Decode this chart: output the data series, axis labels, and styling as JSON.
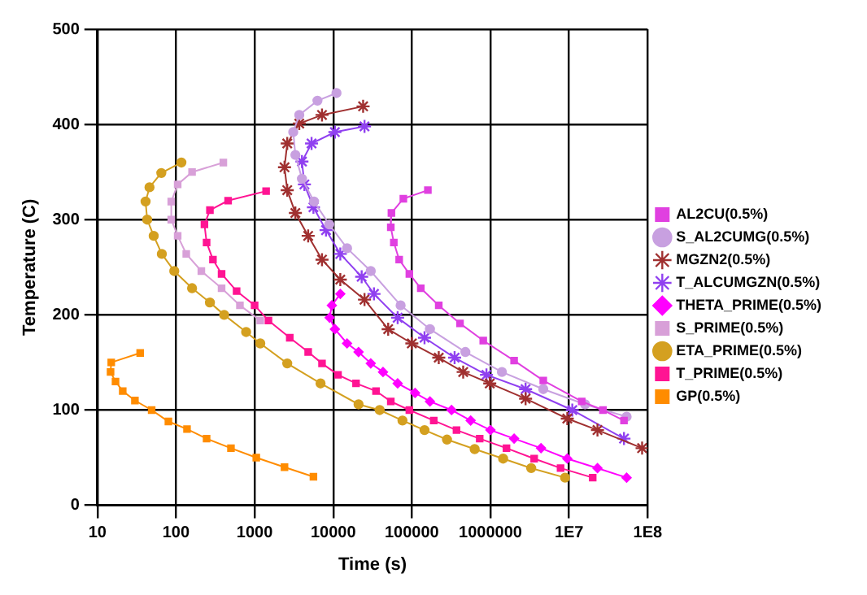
{
  "chart_data": {
    "type": "line",
    "xlabel": "Time (s)",
    "ylabel": "Temperature (C)",
    "log": "x",
    "grid": true,
    "legend": "right",
    "xlim": [
      10,
      100000000
    ],
    "xticks": [
      10,
      100,
      1000,
      10000,
      100000,
      1000000,
      {
        "value": 10000000,
        "label": "1E7"
      },
      {
        "value": 100000000,
        "label": "1E8"
      }
    ],
    "ylim": [
      0,
      500
    ],
    "yticks": [
      0,
      100,
      200,
      300,
      400,
      500
    ],
    "series": [
      {
        "name": "AL2CU(0.5%)",
        "color": "#e040e0",
        "marker": "square",
        "x": [
          160000,
          78000,
          55000,
          54000,
          59000,
          69000,
          93000,
          130000,
          220000,
          410000,
          810000,
          2000000,
          4700000,
          14500000,
          27000000,
          50000000
        ],
        "values": [
          331,
          322,
          307,
          292,
          276,
          258,
          243,
          228,
          210,
          191,
          173,
          152,
          131,
          109,
          100,
          89
        ]
      },
      {
        "name": "S_AL2CUMG(0.5%)",
        "color": "#c8a0e0",
        "marker": "circle",
        "x": [
          11000,
          6300,
          3700,
          3100,
          3300,
          4000,
          5700,
          8900,
          15000,
          30000,
          72000,
          170000,
          480000,
          1400000,
          4700000,
          16000000,
          54000000
        ],
        "values": [
          433,
          425,
          410,
          392,
          368,
          343,
          319,
          295,
          270,
          246,
          210,
          185,
          161,
          140,
          122,
          106,
          93
        ]
      },
      {
        "name": "MGZN2(0.5%)",
        "color": "#a03030",
        "marker": "cross",
        "x": [
          24000,
          7200,
          3700,
          2600,
          2400,
          2600,
          3300,
          4800,
          7200,
          12300,
          25000,
          50000,
          100000,
          220000,
          450000,
          980000,
          2800000,
          9500000,
          23000000,
          85000000
        ],
        "values": [
          419,
          410,
          401,
          380,
          355,
          331,
          307,
          283,
          258,
          237,
          216,
          185,
          170,
          155,
          140,
          128,
          112,
          91,
          79,
          60
        ]
      },
      {
        "name": "T_ALCUMGZN(0.5%)",
        "color": "#9040f0",
        "marker": "cross",
        "x": [
          25000,
          10500,
          5300,
          4000,
          4300,
          5600,
          8100,
          12300,
          23000,
          33000,
          66000,
          145000,
          350000,
          890000,
          2800000,
          11000000,
          50000000
        ],
        "values": [
          398,
          392,
          380,
          361,
          337,
          313,
          289,
          264,
          240,
          222,
          197,
          176,
          155,
          137,
          122,
          100,
          70
        ]
      },
      {
        "name": "THETA_PRIME(0.5%)",
        "color": "#ff00ff",
        "marker": "diamond",
        "x": [
          12300,
          9600,
          9000,
          10500,
          15000,
          21000,
          30000,
          43000,
          66000,
          110000,
          170000,
          320000,
          560000,
          1000000,
          2000000,
          4400000,
          9500000,
          23000000,
          54000000
        ],
        "values": [
          222,
          210,
          197,
          185,
          170,
          161,
          149,
          140,
          128,
          118,
          109,
          100,
          89,
          79,
          70,
          60,
          49,
          39,
          29
        ]
      },
      {
        "name": "S_PRIME(0.5%)",
        "color": "#d8a0d8",
        "marker": "square",
        "x": [
          400,
          160,
          105,
          87,
          87,
          105,
          135,
          210,
          380,
          650,
          1180
        ],
        "values": [
          360,
          350,
          337,
          319,
          300,
          283,
          264,
          246,
          228,
          210,
          194
        ]
      },
      {
        "name": "ETA_PRIME(0.5%)",
        "color": "#d4a020",
        "marker": "circle",
        "x": [
          117,
          65,
          46,
          41,
          43,
          52,
          66,
          95,
          160,
          270,
          410,
          780,
          1180,
          2600,
          6900,
          21000,
          39000,
          76000,
          145000,
          280000,
          630000,
          1450000,
          3300000,
          8900000
        ],
        "values": [
          360,
          349,
          334,
          319,
          300,
          283,
          264,
          246,
          228,
          213,
          200,
          182,
          170,
          149,
          128,
          106,
          100,
          89,
          79,
          69,
          59,
          49,
          39,
          29
        ]
      },
      {
        "name": "T_PRIME(0.5%)",
        "color": "#ff1493",
        "marker": "square",
        "x": [
          1400,
          460,
          270,
          230,
          245,
          295,
          380,
          590,
          1000,
          1500,
          2800,
          4800,
          7200,
          11500,
          19500,
          35000,
          54000,
          93000,
          190000,
          370000,
          730000,
          1600000,
          3600000,
          7800000,
          20000000
        ],
        "values": [
          330,
          320,
          310,
          295,
          276,
          258,
          243,
          225,
          210,
          194,
          176,
          161,
          149,
          137,
          128,
          120,
          109,
          100,
          89,
          79,
          70,
          60,
          49,
          39,
          29
        ]
      },
      {
        "name": "GP(0.5%)",
        "color": "#ff8c00",
        "marker": "square",
        "x": [
          35,
          15,
          14.7,
          17,
          21,
          30,
          49,
          80,
          138,
          245,
          500,
          1050,
          2400,
          5600
        ],
        "values": [
          160,
          150,
          140,
          130,
          120,
          110,
          100,
          88,
          80,
          70,
          60,
          50,
          40,
          30
        ]
      }
    ]
  }
}
